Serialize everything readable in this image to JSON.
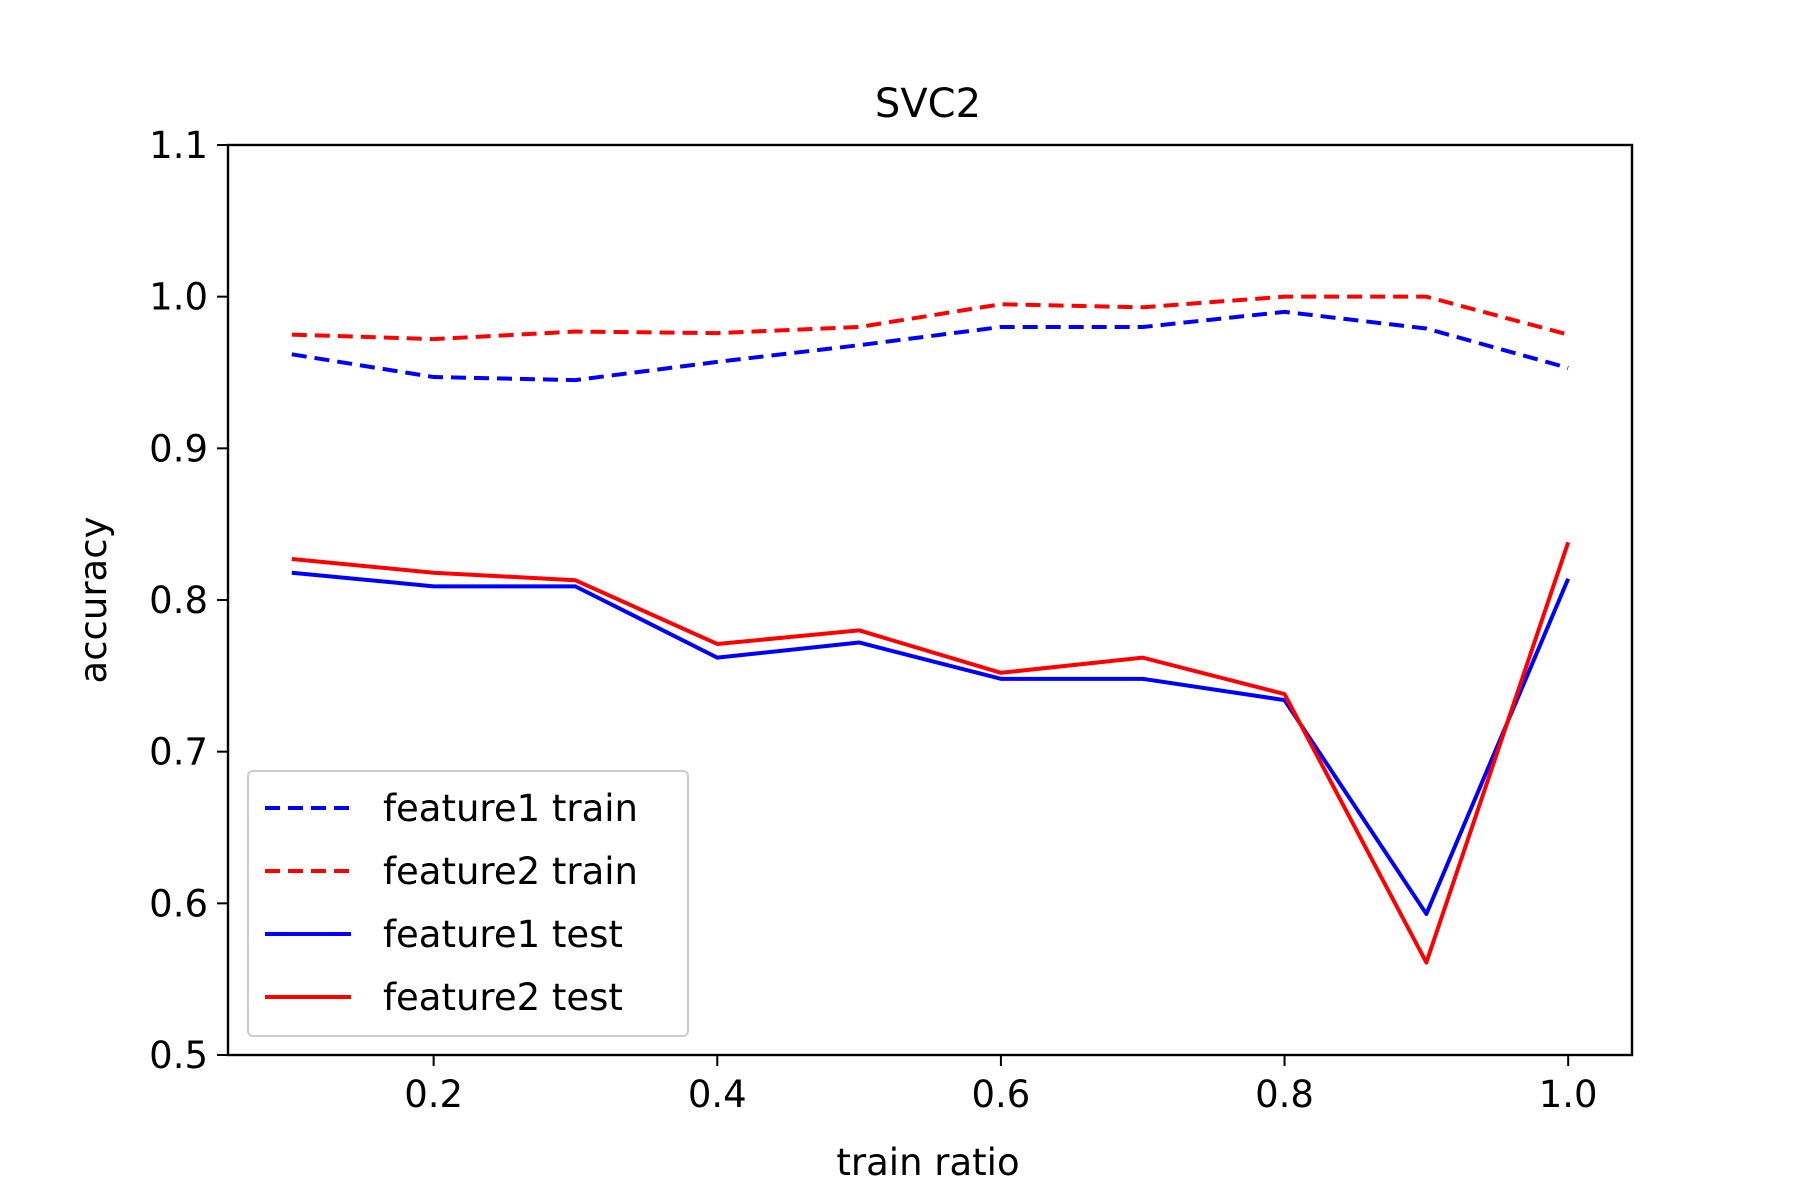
{
  "chart_data": {
    "type": "line",
    "title": "SVC2",
    "xlabel": "train ratio",
    "ylabel": "accuracy",
    "xlim": [
      0.055,
      1.045
    ],
    "ylim": [
      0.5,
      1.1
    ],
    "xticks": [
      {
        "value": 0.2,
        "label": "0.2"
      },
      {
        "value": 0.4,
        "label": "0.4"
      },
      {
        "value": 0.6,
        "label": "0.6"
      },
      {
        "value": 0.8,
        "label": "0.8"
      },
      {
        "value": 1.0,
        "label": "1.0"
      }
    ],
    "yticks": [
      {
        "value": 0.5,
        "label": "0.5"
      },
      {
        "value": 0.6,
        "label": "0.6"
      },
      {
        "value": 0.7,
        "label": "0.7"
      },
      {
        "value": 0.8,
        "label": "0.8"
      },
      {
        "value": 0.9,
        "label": "0.9"
      },
      {
        "value": 1.0,
        "label": "1.0"
      },
      {
        "value": 1.1,
        "label": "1.1"
      }
    ],
    "grid": false,
    "legend_position": "lower left",
    "x": [
      0.1,
      0.2,
      0.3,
      0.4,
      0.5,
      0.6,
      0.7,
      0.8,
      0.9,
      1.0
    ],
    "series": [
      {
        "name": "feature1 train",
        "color": "#0000ff",
        "style": "dashed",
        "values": [
          0.962,
          0.947,
          0.945,
          0.957,
          0.968,
          0.98,
          0.98,
          0.99,
          0.979,
          0.953
        ]
      },
      {
        "name": "feature2 train",
        "color": "#ff0000",
        "style": "dashed",
        "values": [
          0.975,
          0.972,
          0.977,
          0.976,
          0.98,
          0.995,
          0.993,
          1.0,
          1.0,
          0.975
        ]
      },
      {
        "name": "feature1 test",
        "color": "#0000ff",
        "style": "solid",
        "values": [
          0.818,
          0.809,
          0.809,
          0.762,
          0.772,
          0.748,
          0.748,
          0.734,
          0.593,
          0.814
        ]
      },
      {
        "name": "feature2 test",
        "color": "#ff0000",
        "style": "solid",
        "values": [
          0.827,
          0.818,
          0.813,
          0.771,
          0.78,
          0.752,
          0.762,
          0.738,
          0.561,
          0.838
        ]
      }
    ]
  }
}
